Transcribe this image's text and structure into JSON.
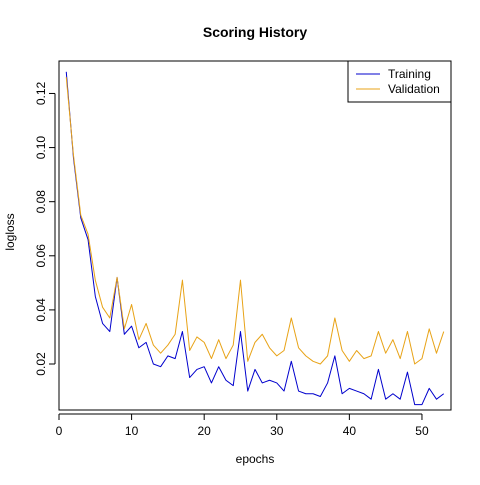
{
  "chart_data": {
    "type": "line",
    "title": "Scoring History",
    "xlabel": "epochs",
    "ylabel": "logloss",
    "xlim": [
      0,
      54
    ],
    "ylim": [
      0.003,
      0.132
    ],
    "x_ticks": [
      0,
      10,
      20,
      30,
      40,
      50
    ],
    "y_ticks": [
      0.02,
      0.04,
      0.06,
      0.08,
      0.1,
      0.12
    ],
    "x_tick_labels": [
      "0",
      "10",
      "20",
      "30",
      "40",
      "50"
    ],
    "y_tick_labels": [
      "0.02",
      "0.04",
      "0.06",
      "0.08",
      "0.10",
      "0.12"
    ],
    "grid": false,
    "legend": {
      "position": "top-right"
    },
    "series": [
      {
        "name": "Training",
        "color": "#0000CD",
        "x": [
          1,
          2,
          3,
          4,
          5,
          6,
          7,
          8,
          9,
          10,
          11,
          12,
          13,
          14,
          15,
          16,
          17,
          18,
          19,
          20,
          21,
          22,
          23,
          24,
          25,
          26,
          27,
          28,
          29,
          30,
          31,
          32,
          33,
          34,
          35,
          36,
          37,
          38,
          39,
          40,
          41,
          42,
          43,
          44,
          45,
          46,
          47,
          48,
          49,
          50,
          51,
          52,
          53
        ],
        "values": [
          0.128,
          0.096,
          0.074,
          0.066,
          0.045,
          0.035,
          0.032,
          0.052,
          0.031,
          0.034,
          0.026,
          0.028,
          0.02,
          0.019,
          0.023,
          0.022,
          0.032,
          0.015,
          0.018,
          0.019,
          0.013,
          0.019,
          0.014,
          0.012,
          0.032,
          0.01,
          0.018,
          0.013,
          0.014,
          0.013,
          0.01,
          0.021,
          0.01,
          0.009,
          0.009,
          0.008,
          0.013,
          0.023,
          0.009,
          0.011,
          0.01,
          0.009,
          0.007,
          0.018,
          0.007,
          0.009,
          0.007,
          0.017,
          0.005,
          0.005,
          0.011,
          0.007,
          0.009
        ]
      },
      {
        "name": "Validation",
        "color": "#E8A317",
        "x": [
          1,
          2,
          3,
          4,
          5,
          6,
          7,
          8,
          9,
          10,
          11,
          12,
          13,
          14,
          15,
          16,
          17,
          18,
          19,
          20,
          21,
          22,
          23,
          24,
          25,
          26,
          27,
          28,
          29,
          30,
          31,
          32,
          33,
          34,
          35,
          36,
          37,
          38,
          39,
          40,
          41,
          42,
          43,
          44,
          45,
          46,
          47,
          48,
          49,
          50,
          51,
          52,
          53
        ],
        "values": [
          0.126,
          0.097,
          0.075,
          0.068,
          0.051,
          0.041,
          0.037,
          0.052,
          0.033,
          0.042,
          0.029,
          0.035,
          0.027,
          0.024,
          0.027,
          0.031,
          0.051,
          0.025,
          0.03,
          0.028,
          0.022,
          0.029,
          0.022,
          0.027,
          0.051,
          0.021,
          0.028,
          0.031,
          0.026,
          0.023,
          0.025,
          0.037,
          0.026,
          0.023,
          0.021,
          0.02,
          0.023,
          0.037,
          0.025,
          0.021,
          0.025,
          0.022,
          0.023,
          0.032,
          0.024,
          0.029,
          0.022,
          0.032,
          0.02,
          0.022,
          0.033,
          0.024,
          0.032
        ]
      }
    ]
  }
}
